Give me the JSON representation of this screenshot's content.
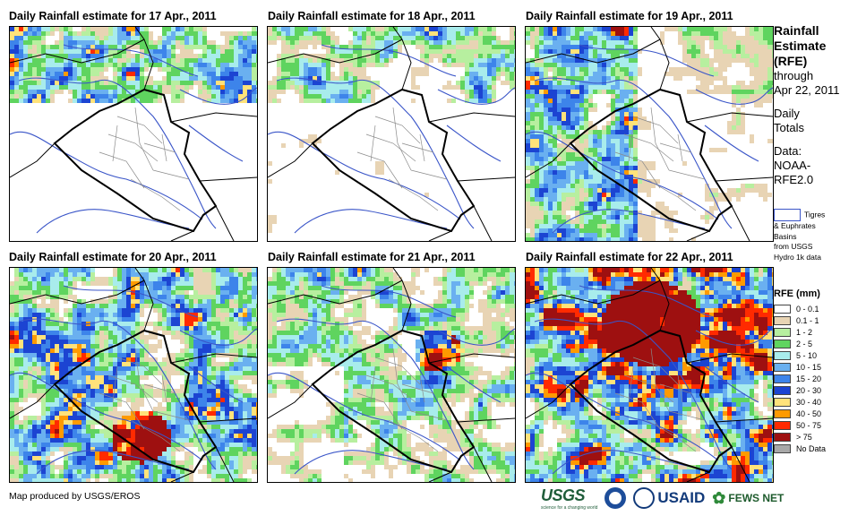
{
  "panels": [
    {
      "title": "Daily Rainfall estimate for 17 Apr., 2011",
      "day": 17
    },
    {
      "title": "Daily Rainfall estimate for 18 Apr., 2011",
      "day": 18
    },
    {
      "title": "Daily Rainfall estimate for 19 Apr., 2011",
      "day": 19
    },
    {
      "title": "Daily Rainfall estimate for 20 Apr., 2011",
      "day": 20
    },
    {
      "title": "Daily Rainfall estimate for 21 Apr., 2011",
      "day": 21
    },
    {
      "title": "Daily Rainfall estimate for 22 Apr., 2011",
      "day": 22
    }
  ],
  "sidebar": {
    "title_lines": [
      "Rainfall",
      "Estimate",
      "(RFE)"
    ],
    "through": "through",
    "through_date": "Apr 22, 2011",
    "daily_totals_lines": [
      "Daily",
      "Totals"
    ],
    "data_lines": [
      "Data:",
      "NOAA-",
      "RFE2.0"
    ],
    "basin_lines": [
      "Tigres",
      "& Euphrates",
      "Basins",
      "from USGS",
      "Hydro 1k data"
    ]
  },
  "legend": {
    "title": "RFE (mm)",
    "items": [
      {
        "label": "0 - 0.1",
        "color": "#ffffff"
      },
      {
        "label": "0.1 - 1",
        "color": "#e8d4b4"
      },
      {
        "label": "1 - 2",
        "color": "#b7ef9f"
      },
      {
        "label": "2 - 5",
        "color": "#5fd45f"
      },
      {
        "label": "5 - 10",
        "color": "#a8ecec"
      },
      {
        "label": "10 - 15",
        "color": "#6ab0f0"
      },
      {
        "label": "15 - 20",
        "color": "#3d84ea"
      },
      {
        "label": "20 - 30",
        "color": "#1c44d2"
      },
      {
        "label": "30 - 40",
        "color": "#ffe27a"
      },
      {
        "label": "40 - 50",
        "color": "#ff9a00"
      },
      {
        "label": "50 - 75",
        "color": "#ff2a00"
      },
      {
        "label": "> 75",
        "color": "#9e1010"
      },
      {
        "label": "No Data",
        "color": "#a8a8a8"
      }
    ]
  },
  "footer": {
    "credit": "Map produced by USGS/EROS",
    "logos": {
      "usgs": "USGS",
      "usgs_tagline": "science for a changing world",
      "usaid": "USAID",
      "fews": "FEWS NET"
    }
  }
}
